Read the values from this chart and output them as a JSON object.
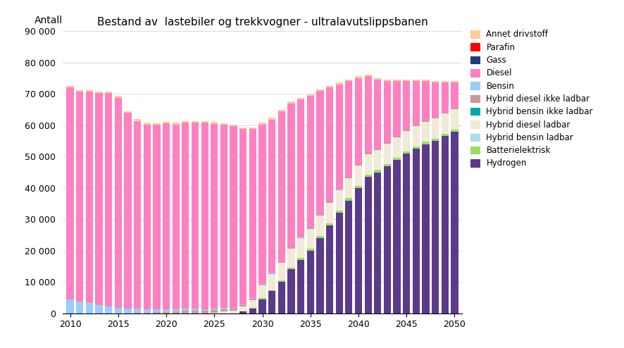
{
  "title": "Bestand av  lastebiler og trekkvogner - ultralavutslippsbanen",
  "ylabel": "Antall",
  "years": [
    2010,
    2011,
    2012,
    2013,
    2014,
    2015,
    2016,
    2017,
    2018,
    2019,
    2020,
    2021,
    2022,
    2023,
    2024,
    2025,
    2026,
    2027,
    2028,
    2029,
    2030,
    2031,
    2032,
    2033,
    2034,
    2035,
    2036,
    2037,
    2038,
    2039,
    2040,
    2041,
    2042,
    2043,
    2044,
    2045,
    2046,
    2047,
    2048,
    2049,
    2050
  ],
  "ylim": [
    0,
    90000
  ],
  "yticks": [
    0,
    10000,
    20000,
    30000,
    40000,
    50000,
    60000,
    70000,
    80000,
    90000
  ],
  "series": {
    "Hydrogen": [
      0,
      0,
      0,
      0,
      0,
      0,
      0,
      0,
      0,
      0,
      0,
      0,
      0,
      0,
      0,
      0,
      0,
      0,
      500,
      1500,
      4500,
      7000,
      10000,
      14000,
      17000,
      20000,
      24000,
      28000,
      32000,
      36000,
      40000,
      43500,
      45000,
      47000,
      49000,
      51000,
      52500,
      54000,
      55000,
      56500,
      58000
    ],
    "Batterielektrisk": [
      0,
      0,
      0,
      0,
      0,
      0,
      0,
      0,
      0,
      0,
      0,
      0,
      0,
      0,
      0,
      0,
      0,
      0,
      100,
      200,
      300,
      400,
      500,
      600,
      700,
      700,
      700,
      700,
      700,
      700,
      700,
      700,
      700,
      700,
      700,
      700,
      700,
      700,
      700,
      700,
      700
    ],
    "Hybrid bensin ladbar": [
      0,
      0,
      0,
      0,
      0,
      0,
      0,
      0,
      0,
      0,
      0,
      0,
      0,
      0,
      0,
      0,
      0,
      0,
      0,
      0,
      0,
      0,
      0,
      0,
      0,
      0,
      0,
      0,
      0,
      0,
      0,
      0,
      0,
      0,
      0,
      0,
      0,
      0,
      0,
      0,
      0
    ],
    "Hybrid diesel ladbar": [
      0,
      0,
      0,
      0,
      0,
      0,
      0,
      0,
      0,
      0,
      0,
      0,
      0,
      0,
      0,
      200,
      500,
      800,
      1500,
      2500,
      4000,
      5000,
      5500,
      6000,
      6200,
      6300,
      6400,
      6500,
      6500,
      6500,
      6500,
      6500,
      6500,
      6500,
      6500,
      6500,
      6500,
      6500,
      6500,
      6500,
      6500
    ],
    "Hybrid bensin ikke ladbar": [
      0,
      0,
      0,
      0,
      0,
      0,
      0,
      0,
      0,
      0,
      0,
      0,
      0,
      0,
      0,
      0,
      0,
      0,
      0,
      0,
      0,
      0,
      0,
      0,
      0,
      0,
      0,
      0,
      0,
      0,
      0,
      0,
      0,
      0,
      0,
      0,
      0,
      0,
      0,
      0,
      0
    ],
    "Hybrid diesel ikke ladbar": [
      0,
      0,
      0,
      0,
      0,
      0,
      0,
      100,
      200,
      300,
      400,
      600,
      800,
      900,
      900,
      900,
      800,
      700,
      600,
      500,
      400,
      400,
      400,
      400,
      400,
      400,
      400,
      400,
      400,
      400,
      400,
      400,
      400,
      400,
      400,
      400,
      400,
      400,
      400,
      400,
      400
    ],
    "Bensin": [
      4500,
      3800,
      3200,
      2700,
      2200,
      1800,
      1500,
      1300,
      1100,
      900,
      800,
      700,
      600,
      500,
      450,
      380,
      300,
      250,
      180,
      120,
      80,
      60,
      40,
      30,
      20,
      20,
      10,
      10,
      10,
      10,
      10,
      10,
      10,
      10,
      10,
      10,
      10,
      10,
      10,
      10,
      10
    ],
    "Diesel": [
      67500,
      67000,
      67500,
      67500,
      68000,
      67000,
      62500,
      60000,
      59000,
      59000,
      59500,
      59000,
      59500,
      59500,
      59500,
      59000,
      58500,
      58000,
      56000,
      54000,
      51000,
      49000,
      48000,
      46000,
      44000,
      42000,
      39500,
      36500,
      33500,
      30500,
      27500,
      24500,
      22000,
      19500,
      17500,
      15500,
      14000,
      12500,
      11000,
      9500,
      8000
    ],
    "Gass": [
      0,
      0,
      0,
      0,
      0,
      0,
      0,
      0,
      0,
      0,
      0,
      0,
      0,
      0,
      0,
      0,
      0,
      0,
      0,
      0,
      0,
      0,
      0,
      0,
      0,
      0,
      0,
      0,
      0,
      0,
      0,
      0,
      0,
      0,
      0,
      0,
      0,
      0,
      0,
      0,
      0
    ],
    "Parafin": [
      0,
      0,
      0,
      0,
      0,
      0,
      0,
      0,
      0,
      0,
      0,
      0,
      0,
      0,
      0,
      0,
      0,
      0,
      0,
      0,
      0,
      0,
      0,
      0,
      0,
      0,
      0,
      0,
      0,
      0,
      0,
      0,
      0,
      0,
      0,
      0,
      0,
      0,
      0,
      0,
      0
    ],
    "Annet drivstoff": [
      500,
      500,
      500,
      500,
      500,
      500,
      500,
      500,
      500,
      500,
      500,
      500,
      500,
      500,
      500,
      500,
      500,
      500,
      500,
      500,
      500,
      500,
      500,
      500,
      500,
      500,
      500,
      500,
      500,
      500,
      500,
      500,
      500,
      500,
      500,
      500,
      500,
      500,
      500,
      500,
      500
    ]
  },
  "colors": {
    "Annet drivstoff": "#FFCC99",
    "Parafin": "#FF0000",
    "Gass": "#1F3A7D",
    "Diesel": "#FF80C0",
    "Bensin": "#99CCFF",
    "Hybrid diesel ikke ladbar": "#CC9999",
    "Hybrid bensin ikke ladbar": "#00AAAA",
    "Hybrid diesel ladbar": "#F0EAD6",
    "Hybrid bensin ladbar": "#AADDEE",
    "Batterielektrisk": "#99DD66",
    "Hydrogen": "#5B3A8C"
  },
  "legend_order": [
    "Annet drivstoff",
    "Parafin",
    "Gass",
    "Diesel",
    "Bensin",
    "Hybrid diesel ikke ladbar",
    "Hybrid bensin ikke ladbar",
    "Hybrid diesel ladbar",
    "Hybrid bensin ladbar",
    "Batterielektrisk",
    "Hydrogen"
  ],
  "stack_order": [
    "Hydrogen",
    "Batterielektrisk",
    "Hybrid bensin ladbar",
    "Hybrid diesel ladbar",
    "Hybrid bensin ikke ladbar",
    "Hybrid diesel ikke ladbar",
    "Bensin",
    "Diesel",
    "Gass",
    "Parafin",
    "Annet drivstoff"
  ]
}
